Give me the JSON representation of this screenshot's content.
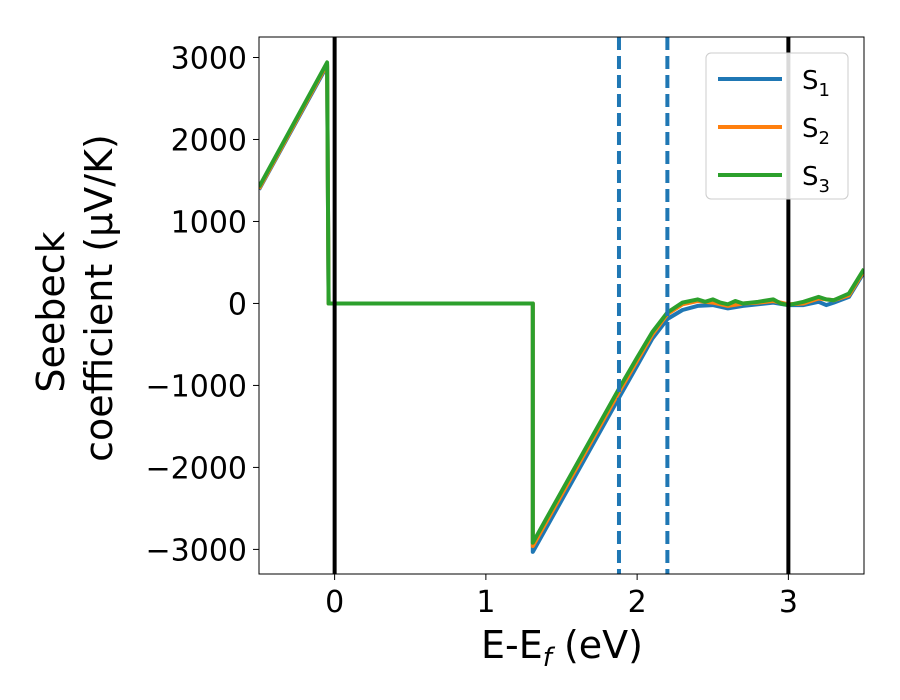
{
  "chart_data": {
    "type": "line",
    "title": "",
    "xlabel": "E-E",
    "xlabel_sub": "f",
    "xlabel_unit": " (eV)",
    "ylabel_line1": "Seebeck",
    "ylabel_line2": "coefficient  (μV/K)",
    "xlim": [
      -0.5,
      3.5
    ],
    "ylim": [
      -3300,
      3250
    ],
    "xticks": [
      0,
      1,
      2,
      3
    ],
    "xtick_labels": [
      "0",
      "1",
      "2",
      "3"
    ],
    "yticks": [
      3000,
      2000,
      1000,
      0,
      -1000,
      -2000,
      -3000
    ],
    "ytick_labels": [
      "3000",
      "2000",
      "1000",
      "0",
      "−1000",
      "−2000",
      "−3000"
    ],
    "grid": false,
    "legend_position": "top-right",
    "vlines_solid": [
      0,
      3
    ],
    "vlines_dashed": [
      1.88,
      2.2
    ],
    "colors": {
      "solid_vline": "#000000",
      "dashed_vline": "#1f77b4",
      "s1": "#1f77b4",
      "s2": "#ff7f0e",
      "s3": "#2ca02c"
    },
    "series": [
      {
        "name": "S",
        "sub": "1",
        "color": "#1f77b4",
        "points": [
          [
            -0.5,
            1390
          ],
          [
            -0.05,
            2900
          ],
          [
            -0.04,
            0
          ],
          [
            1.31,
            0
          ],
          [
            1.31,
            -3030
          ],
          [
            1.88,
            -1150
          ],
          [
            2.0,
            -760
          ],
          [
            2.1,
            -430
          ],
          [
            2.2,
            -190
          ],
          [
            2.3,
            -80
          ],
          [
            2.4,
            -30
          ],
          [
            2.5,
            -20
          ],
          [
            2.6,
            -60
          ],
          [
            2.7,
            -30
          ],
          [
            2.8,
            -10
          ],
          [
            2.9,
            10
          ],
          [
            3.0,
            -20
          ],
          [
            3.1,
            -20
          ],
          [
            3.2,
            20
          ],
          [
            3.25,
            -20
          ],
          [
            3.3,
            10
          ],
          [
            3.4,
            80
          ],
          [
            3.5,
            380
          ]
        ]
      },
      {
        "name": "S",
        "sub": "2",
        "color": "#ff7f0e",
        "points": [
          [
            -0.5,
            1400
          ],
          [
            -0.05,
            2920
          ],
          [
            -0.04,
            0
          ],
          [
            1.31,
            0
          ],
          [
            1.31,
            -2960
          ],
          [
            1.88,
            -1080
          ],
          [
            2.0,
            -700
          ],
          [
            2.1,
            -380
          ],
          [
            2.2,
            -130
          ],
          [
            2.3,
            -10
          ],
          [
            2.4,
            30
          ],
          [
            2.5,
            10
          ],
          [
            2.6,
            -30
          ],
          [
            2.7,
            0
          ],
          [
            2.8,
            10
          ],
          [
            2.9,
            30
          ],
          [
            3.0,
            -10
          ],
          [
            3.1,
            0
          ],
          [
            3.2,
            60
          ],
          [
            3.3,
            40
          ],
          [
            3.4,
            100
          ],
          [
            3.5,
            400
          ]
        ]
      },
      {
        "name": "S",
        "sub": "3",
        "color": "#2ca02c",
        "points": [
          [
            -0.5,
            1420
          ],
          [
            -0.05,
            2940
          ],
          [
            -0.04,
            0
          ],
          [
            1.31,
            0
          ],
          [
            1.31,
            -2920
          ],
          [
            1.88,
            -1040
          ],
          [
            2.0,
            -660
          ],
          [
            2.1,
            -350
          ],
          [
            2.2,
            -110
          ],
          [
            2.3,
            10
          ],
          [
            2.4,
            50
          ],
          [
            2.45,
            20
          ],
          [
            2.5,
            50
          ],
          [
            2.55,
            10
          ],
          [
            2.6,
            -10
          ],
          [
            2.65,
            30
          ],
          [
            2.7,
            0
          ],
          [
            2.8,
            20
          ],
          [
            2.9,
            50
          ],
          [
            2.95,
            0
          ],
          [
            3.0,
            -20
          ],
          [
            3.1,
            20
          ],
          [
            3.2,
            80
          ],
          [
            3.25,
            50
          ],
          [
            3.3,
            40
          ],
          [
            3.4,
            120
          ],
          [
            3.5,
            420
          ]
        ]
      }
    ]
  }
}
